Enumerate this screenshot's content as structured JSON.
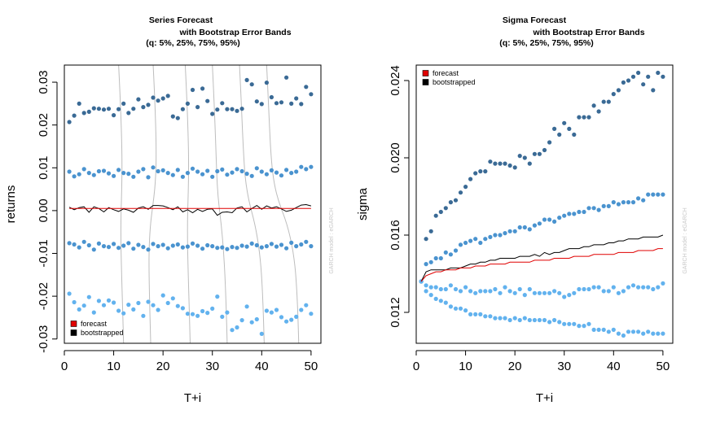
{
  "colors": {
    "dark": "#3a6a95",
    "mid": "#4a93cf",
    "light": "#62b2ee",
    "forecast": "#e00000",
    "bootstrapped": "#000000",
    "guide": "#bdbdbd",
    "watermark": "#c8c8c8"
  },
  "chart_data": [
    {
      "type": "scatter",
      "title": [
        "Series Forecast",
        "with Bootstrap Error Bands",
        "(q: 5%, 25%, 75%, 95%)"
      ],
      "xlabel": "T+i",
      "ylabel": "returns",
      "xlim": [
        0,
        52
      ],
      "ylim": [
        -0.031,
        0.034
      ],
      "xticks": [
        0,
        10,
        20,
        30,
        40,
        50
      ],
      "xtick_labels": [
        "0",
        "10",
        "20",
        "30",
        "40",
        "50"
      ],
      "yticks": [
        -0.03,
        -0.02,
        -0.01,
        0.0,
        0.01,
        0.02,
        0.03
      ],
      "ytick_labels": [
        "-0.03",
        "-0.02",
        "-0.01",
        "0.00",
        "0.01",
        "0.02",
        "0.03"
      ],
      "legend": {
        "position": "bottom-left",
        "entries": [
          {
            "label": "forecast",
            "color": "#e00000"
          },
          {
            "label": "bootstrapped",
            "color": "#000000"
          }
        ]
      },
      "watermark": "GARCH model : eGARCH",
      "x": [
        1,
        2,
        3,
        4,
        5,
        6,
        7,
        8,
        9,
        10,
        11,
        12,
        13,
        14,
        15,
        16,
        17,
        18,
        19,
        20,
        21,
        22,
        23,
        24,
        25,
        26,
        27,
        28,
        29,
        30,
        31,
        32,
        33,
        34,
        35,
        36,
        37,
        38,
        39,
        40,
        41,
        42,
        43,
        44,
        45,
        46,
        47,
        48,
        49,
        50
      ],
      "series": [
        {
          "name": "q95",
          "color": "dark",
          "values": [
            0.0207,
            0.0222,
            0.025,
            0.0228,
            0.0231,
            0.0239,
            0.0238,
            0.0236,
            0.0238,
            0.0223,
            0.0237,
            0.025,
            0.0228,
            0.0238,
            0.026,
            0.0242,
            0.0247,
            0.0264,
            0.0257,
            0.0262,
            0.0268,
            0.022,
            0.0216,
            0.0237,
            0.025,
            0.0282,
            0.0242,
            0.0285,
            0.0256,
            0.0226,
            0.0236,
            0.0251,
            0.0237,
            0.0237,
            0.0233,
            0.0238,
            0.0305,
            0.0295,
            0.0255,
            0.0249,
            0.0299,
            0.0265,
            0.0251,
            0.0253,
            0.0311,
            0.025,
            0.0262,
            0.0249,
            0.0289,
            0.0272
          ]
        },
        {
          "name": "q75",
          "color": "mid",
          "values": [
            0.0091,
            0.008,
            0.0085,
            0.0097,
            0.0088,
            0.0083,
            0.0092,
            0.0093,
            0.0087,
            0.0081,
            0.0095,
            0.0088,
            0.0086,
            0.0079,
            0.0091,
            0.0097,
            0.0078,
            0.0101,
            0.0092,
            0.0094,
            0.0088,
            0.0083,
            0.0095,
            0.0079,
            0.0088,
            0.0098,
            0.0091,
            0.0085,
            0.0093,
            0.0079,
            0.0092,
            0.0096,
            0.0084,
            0.0089,
            0.0097,
            0.0092,
            0.0086,
            0.0081,
            0.0099,
            0.0091,
            0.0085,
            0.0094,
            0.0089,
            0.0082,
            0.0095,
            0.0088,
            0.0091,
            0.0102,
            0.0097,
            0.0102
          ]
        },
        {
          "name": "q25",
          "color": "mid",
          "values": [
            -0.0076,
            -0.0079,
            -0.0086,
            -0.0073,
            -0.0081,
            -0.0091,
            -0.0077,
            -0.0083,
            -0.0085,
            -0.0078,
            -0.0087,
            -0.0082,
            -0.0076,
            -0.0089,
            -0.008,
            -0.0085,
            -0.0091,
            -0.0078,
            -0.0083,
            -0.008,
            -0.0088,
            -0.0082,
            -0.0079,
            -0.0086,
            -0.0084,
            -0.0077,
            -0.0082,
            -0.0089,
            -0.0081,
            -0.0083,
            -0.0087,
            -0.0086,
            -0.009,
            -0.0085,
            -0.0087,
            -0.0082,
            -0.0084,
            -0.0077,
            -0.0081,
            -0.0086,
            -0.0083,
            -0.0078,
            -0.0084,
            -0.008,
            -0.0088,
            -0.0075,
            -0.0083,
            -0.0079,
            -0.0073,
            -0.0083
          ]
        },
        {
          "name": "q05",
          "color": "light",
          "values": [
            -0.0194,
            -0.0214,
            -0.0231,
            -0.0222,
            -0.0202,
            -0.0238,
            -0.0211,
            -0.0221,
            -0.021,
            -0.0215,
            -0.0234,
            -0.024,
            -0.022,
            -0.0231,
            -0.0216,
            -0.0246,
            -0.0213,
            -0.0221,
            -0.0232,
            -0.0198,
            -0.0216,
            -0.0205,
            -0.0223,
            -0.0228,
            -0.0241,
            -0.0242,
            -0.0246,
            -0.0235,
            -0.0239,
            -0.0229,
            -0.0201,
            -0.0248,
            -0.0238,
            -0.0279,
            -0.0273,
            -0.0256,
            -0.0224,
            -0.0261,
            -0.0254,
            -0.0288,
            -0.0234,
            -0.0238,
            -0.0232,
            -0.0249,
            -0.0259,
            -0.0255,
            -0.0248,
            -0.0232,
            -0.0221,
            -0.0241
          ]
        },
        {
          "name": "bootstrapped",
          "color": "bootstrapped",
          "type": "line",
          "values": [
            0.0008,
            0.0002,
            0.0007,
            0.0009,
            -0.0004,
            0.0009,
            0.0005,
            -0.0003,
            0.0007,
            0.0002,
            -0.0002,
            0.0004,
            0.0001,
            -0.0004,
            0.0006,
            0.0009,
            0.0003,
            0.0012,
            0.0012,
            0.0011,
            0.0007,
            0.0002,
            0.0009,
            -0.0003,
            0.0002,
            -0.0005,
            0.0003,
            -0.0002,
            0.0003,
            0.0004,
            -0.0011,
            -0.0004,
            -0.0003,
            -0.0005,
            0.0006,
            0.0009,
            -0.0003,
            0.0005,
            0.0012,
            0.0003,
            0.0011,
            0.0006,
            0.0009,
            0.0004,
            -0.0002,
            0.0001,
            0.0007,
            0.0013,
            0.0014,
            0.0011
          ]
        },
        {
          "name": "forecast",
          "color": "forecast",
          "type": "line",
          "values": [
            0.0005,
            0.0005,
            0.0005,
            0.0005,
            0.0005,
            0.0005,
            0.0005,
            0.0005,
            0.0005,
            0.0005,
            0.0005,
            0.0005,
            0.0005,
            0.0005,
            0.0005,
            0.0005,
            0.0005,
            0.0005,
            0.0005,
            0.0005,
            0.0005,
            0.0005,
            0.0005,
            0.0005,
            0.0005,
            0.0005,
            0.0005,
            0.0005,
            0.0005,
            0.0005,
            0.0005,
            0.0005,
            0.0005,
            0.0005,
            0.0005,
            0.0005,
            0.0005,
            0.0005,
            0.0005,
            0.0005,
            0.0005,
            0.0005,
            0.0005,
            0.0005,
            0.0005,
            0.0005,
            0.0005,
            0.0005,
            0.0005,
            0.0005
          ]
        }
      ],
      "guide_curves": [
        {
          "x_top": 11.0,
          "x_bottom": 12.0
        },
        {
          "x_top": 18.0,
          "x_bottom": 17.5
        },
        {
          "x_top": 24.5,
          "x_bottom": 25.5
        },
        {
          "x_top": 30.0,
          "x_bottom": 33.0
        },
        {
          "x_top": 35.5,
          "x_bottom": 40.5
        },
        {
          "x_top": 41.0,
          "x_bottom": 47.5
        }
      ]
    },
    {
      "type": "scatter",
      "title": [
        "Sigma Forecast",
        "with Bootstrap Error Bands",
        "(q: 5%, 25%, 75%, 95%)"
      ],
      "xlabel": "T+i",
      "ylabel": "sigma",
      "xlim": [
        0,
        52
      ],
      "ylim": [
        0.0104,
        0.0248
      ],
      "xticks": [
        0,
        10,
        20,
        30,
        40,
        50
      ],
      "xtick_labels": [
        "0",
        "10",
        "20",
        "30",
        "40",
        "50"
      ],
      "yticks": [
        0.012,
        0.016,
        0.02,
        0.024
      ],
      "ytick_labels": [
        "0.012",
        "0.016",
        "0.020",
        "0.024"
      ],
      "legend": {
        "position": "top-left",
        "entries": [
          {
            "label": "forecast",
            "color": "#e00000"
          },
          {
            "label": "bootstrapped",
            "color": "#000000"
          }
        ]
      },
      "watermark": "GARCH model : eGARCH",
      "x": [
        1,
        2,
        3,
        4,
        5,
        6,
        7,
        8,
        9,
        10,
        11,
        12,
        13,
        14,
        15,
        16,
        17,
        18,
        19,
        20,
        21,
        22,
        23,
        24,
        25,
        26,
        27,
        28,
        29,
        30,
        31,
        32,
        33,
        34,
        35,
        36,
        37,
        38,
        39,
        40,
        41,
        42,
        43,
        44,
        45,
        46,
        47,
        48,
        49,
        50
      ],
      "series": [
        {
          "name": "q95",
          "color": "dark",
          "values": [
            0.0136,
            0.0158,
            0.0162,
            0.017,
            0.0172,
            0.0174,
            0.0177,
            0.0178,
            0.0182,
            0.0185,
            0.0189,
            0.0192,
            0.0193,
            0.0193,
            0.0198,
            0.0197,
            0.0197,
            0.0197,
            0.0196,
            0.0195,
            0.0201,
            0.02,
            0.0197,
            0.0202,
            0.0202,
            0.0204,
            0.0208,
            0.0215,
            0.0212,
            0.0218,
            0.0215,
            0.0212,
            0.0221,
            0.0221,
            0.0221,
            0.0227,
            0.0224,
            0.0229,
            0.0229,
            0.0233,
            0.0235,
            0.0239,
            0.024,
            0.0242,
            0.0244,
            0.0238,
            0.0242,
            0.0235,
            0.0244,
            0.0242
          ]
        },
        {
          "name": "q75",
          "color": "mid",
          "values": [
            0.0136,
            0.0145,
            0.0146,
            0.0148,
            0.0148,
            0.0151,
            0.015,
            0.0152,
            0.0155,
            0.0156,
            0.0157,
            0.0158,
            0.0156,
            0.0158,
            0.0159,
            0.016,
            0.016,
            0.0161,
            0.0162,
            0.0162,
            0.0164,
            0.0164,
            0.0163,
            0.0165,
            0.0166,
            0.0168,
            0.0168,
            0.0167,
            0.0169,
            0.017,
            0.0171,
            0.0171,
            0.0172,
            0.0172,
            0.0174,
            0.0174,
            0.0173,
            0.0175,
            0.0175,
            0.0177,
            0.0176,
            0.0177,
            0.0177,
            0.0177,
            0.0179,
            0.0178,
            0.0181,
            0.0181,
            0.0181,
            0.0181
          ]
        },
        {
          "name": "q25",
          "color": "light",
          "values": [
            0.0136,
            0.0134,
            0.0133,
            0.0133,
            0.0132,
            0.0132,
            0.0134,
            0.0132,
            0.0131,
            0.0133,
            0.0131,
            0.013,
            0.0131,
            0.0131,
            0.0131,
            0.0132,
            0.013,
            0.0133,
            0.0131,
            0.013,
            0.0132,
            0.0129,
            0.0132,
            0.013,
            0.013,
            0.013,
            0.013,
            0.0131,
            0.013,
            0.0128,
            0.0129,
            0.013,
            0.0132,
            0.0132,
            0.0132,
            0.0133,
            0.0133,
            0.0131,
            0.0131,
            0.0133,
            0.013,
            0.0131,
            0.0133,
            0.0134,
            0.0133,
            0.0133,
            0.0133,
            0.0132,
            0.0133,
            0.0135
          ]
        },
        {
          "name": "q05",
          "color": "light",
          "values": [
            0.0136,
            0.0131,
            0.0129,
            0.0127,
            0.0126,
            0.0125,
            0.0123,
            0.0122,
            0.0122,
            0.0121,
            0.0119,
            0.0119,
            0.0119,
            0.0118,
            0.0118,
            0.0117,
            0.0117,
            0.0117,
            0.0116,
            0.0117,
            0.0116,
            0.0117,
            0.0116,
            0.0116,
            0.0116,
            0.0116,
            0.0115,
            0.0116,
            0.0115,
            0.0114,
            0.0114,
            0.0114,
            0.0113,
            0.0113,
            0.0114,
            0.0111,
            0.0111,
            0.0111,
            0.011,
            0.0111,
            0.0109,
            0.0108,
            0.011,
            0.011,
            0.011,
            0.0109,
            0.011,
            0.0109,
            0.0109,
            0.0109
          ]
        },
        {
          "name": "bootstrapped",
          "color": "bootstrapped",
          "type": "line",
          "values": [
            0.0136,
            0.0141,
            0.0142,
            0.0142,
            0.0142,
            0.0142,
            0.0143,
            0.0143,
            0.0143,
            0.0144,
            0.0145,
            0.0145,
            0.0146,
            0.0146,
            0.0147,
            0.0147,
            0.0148,
            0.0148,
            0.0148,
            0.0148,
            0.0149,
            0.0149,
            0.0149,
            0.015,
            0.0149,
            0.0151,
            0.015,
            0.0151,
            0.0151,
            0.0152,
            0.0153,
            0.0153,
            0.0153,
            0.0154,
            0.0154,
            0.0155,
            0.0155,
            0.0155,
            0.0156,
            0.0156,
            0.0157,
            0.0157,
            0.0158,
            0.0158,
            0.0158,
            0.0159,
            0.0159,
            0.0159,
            0.0159,
            0.016
          ]
        },
        {
          "name": "forecast",
          "color": "forecast",
          "type": "line",
          "values": [
            0.0136,
            0.0139,
            0.014,
            0.0141,
            0.0141,
            0.0142,
            0.0142,
            0.0142,
            0.0143,
            0.0143,
            0.0143,
            0.0144,
            0.0144,
            0.0144,
            0.0145,
            0.0145,
            0.0145,
            0.0145,
            0.0146,
            0.0146,
            0.0146,
            0.0146,
            0.0146,
            0.0147,
            0.0147,
            0.0147,
            0.0147,
            0.0148,
            0.0148,
            0.0148,
            0.0148,
            0.0149,
            0.0149,
            0.0149,
            0.0149,
            0.015,
            0.015,
            0.015,
            0.015,
            0.015,
            0.0151,
            0.0151,
            0.0151,
            0.0151,
            0.0152,
            0.0152,
            0.0152,
            0.0152,
            0.0153,
            0.0153
          ]
        }
      ]
    }
  ]
}
